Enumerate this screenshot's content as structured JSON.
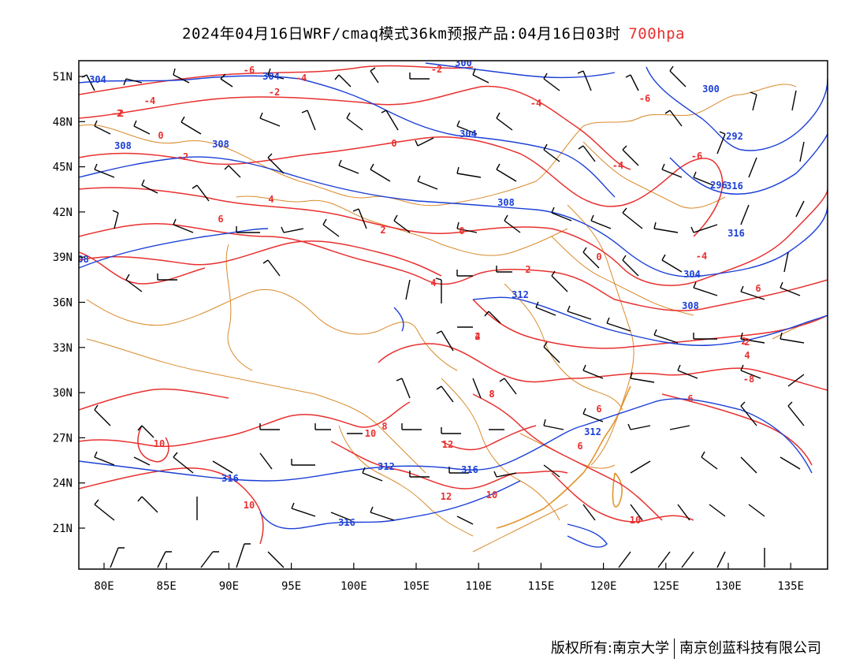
{
  "header": {
    "title": "2024年04月16日WRF/cmaq模式36km预报产品:04月16日03时",
    "level": "700hpa"
  },
  "axes": {
    "lat_labels": [
      "51N",
      "48N",
      "45N",
      "42N",
      "39N",
      "36N",
      "33N",
      "30N",
      "27N",
      "24N",
      "21N"
    ],
    "lon_labels": [
      "80E",
      "85E",
      "90E",
      "95E",
      "100E",
      "105E",
      "110E",
      "115E",
      "120E",
      "125E",
      "130E",
      "135E"
    ]
  },
  "colors": {
    "temperature": "#e8302f",
    "geopotential": "#1a3fd6",
    "borders": "#d98a2b",
    "wind": "#000000"
  },
  "geopotential_labels": [
    "304",
    "304",
    "300",
    "308",
    "308",
    "304",
    "308",
    "300",
    "304",
    "308",
    "292",
    "296",
    "312",
    "312",
    "316",
    "316",
    "312",
    "316",
    "316",
    "316",
    "308"
  ],
  "temperature_labels": [
    "-6",
    "-4",
    "-2",
    "-4",
    "-2",
    "-2",
    "-4",
    "-6",
    "-6",
    "-4",
    "0",
    "-2",
    "0",
    "2",
    "4",
    "6",
    "2",
    "0",
    "2",
    "0",
    "4",
    "2",
    "-4",
    "-8",
    "2",
    "4",
    "4",
    "6",
    "8",
    "6",
    "6",
    "8",
    "10",
    "10",
    "12",
    "12",
    "10",
    "10",
    "10",
    "6",
    "8",
    "-2"
  ],
  "footer": {
    "left": "版权所有:南京大学",
    "right": "南京创蓝科技有限公司"
  }
}
